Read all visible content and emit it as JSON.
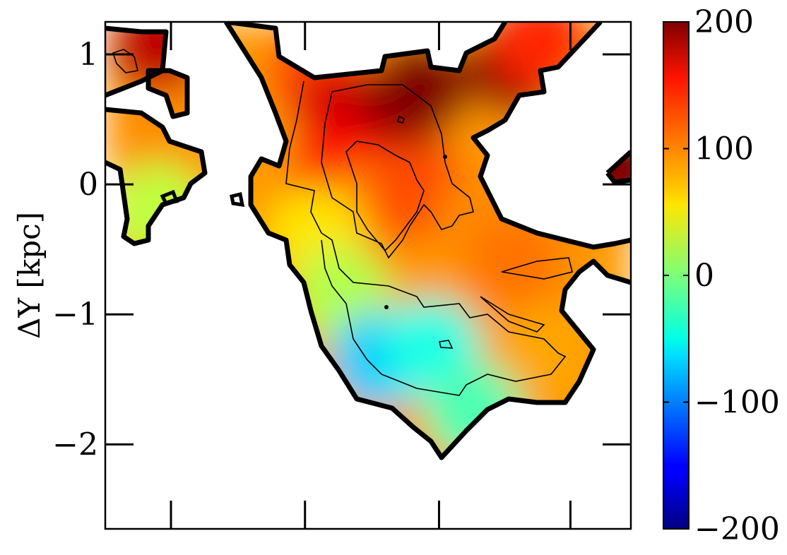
{
  "chart_data": {
    "type": "heatmap",
    "title": "",
    "xlabel": "",
    "ylabel": "ΔY [kpc]",
    "ylim": [
      -2.65,
      1.25
    ],
    "y_ticks": [
      {
        "value": 1,
        "label": "1"
      },
      {
        "value": 0,
        "label": "0"
      },
      {
        "value": -1,
        "label": "−1"
      },
      {
        "value": -2,
        "label": "−2"
      }
    ],
    "x_tick_labels_shown": false,
    "grid": false,
    "colorbar": {
      "colormap": "jet",
      "range": [
        -200,
        200
      ],
      "ticks": [
        {
          "value": 200,
          "label": "200"
        },
        {
          "value": 100,
          "label": "100"
        },
        {
          "value": 0,
          "label": "0"
        },
        {
          "value": -100,
          "label": "−100"
        },
        {
          "value": -200,
          "label": "−200"
        }
      ]
    },
    "field_samples": {
      "columns": [
        "relative_x",
        "dY_kpc",
        "value"
      ],
      "rows": [
        [
          0.1,
          1.05,
          175
        ],
        [
          0.1,
          0.35,
          95
        ],
        [
          0.1,
          -0.2,
          25
        ],
        [
          0.4,
          0.85,
          120
        ],
        [
          0.45,
          0.55,
          165
        ],
        [
          0.55,
          0.5,
          185
        ],
        [
          0.6,
          0.75,
          200
        ],
        [
          0.78,
          0.9,
          195
        ],
        [
          0.83,
          1.1,
          135
        ],
        [
          0.45,
          0.1,
          150
        ],
        [
          0.5,
          -0.2,
          100
        ],
        [
          0.6,
          -0.05,
          120
        ],
        [
          0.4,
          -0.4,
          60
        ],
        [
          0.45,
          -0.85,
          20
        ],
        [
          0.52,
          -1.35,
          -70
        ],
        [
          0.62,
          -1.25,
          -40
        ],
        [
          0.72,
          -0.3,
          95
        ],
        [
          0.78,
          -0.6,
          105
        ],
        [
          0.83,
          -1.3,
          85
        ],
        [
          0.7,
          -1.75,
          -20
        ],
        [
          0.97,
          0.1,
          200
        ]
      ]
    }
  }
}
